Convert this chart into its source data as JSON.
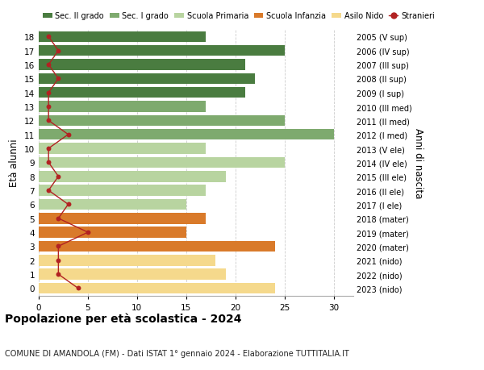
{
  "ages": [
    18,
    17,
    16,
    15,
    14,
    13,
    12,
    11,
    10,
    9,
    8,
    7,
    6,
    5,
    4,
    3,
    2,
    1,
    0
  ],
  "right_labels": [
    "2005 (V sup)",
    "2006 (IV sup)",
    "2007 (III sup)",
    "2008 (II sup)",
    "2009 (I sup)",
    "2010 (III med)",
    "2011 (II med)",
    "2012 (I med)",
    "2013 (V ele)",
    "2014 (IV ele)",
    "2015 (III ele)",
    "2016 (II ele)",
    "2017 (I ele)",
    "2018 (mater)",
    "2019 (mater)",
    "2020 (mater)",
    "2021 (nido)",
    "2022 (nido)",
    "2023 (nido)"
  ],
  "bar_values": [
    17,
    25,
    21,
    22,
    21,
    17,
    25,
    30,
    17,
    25,
    19,
    17,
    15,
    17,
    15,
    24,
    18,
    19,
    24
  ],
  "bar_colors": [
    "#4a7c40",
    "#4a7c40",
    "#4a7c40",
    "#4a7c40",
    "#4a7c40",
    "#7eaa6e",
    "#7eaa6e",
    "#7eaa6e",
    "#b8d4a0",
    "#b8d4a0",
    "#b8d4a0",
    "#b8d4a0",
    "#b8d4a0",
    "#d97a2a",
    "#d97a2a",
    "#d97a2a",
    "#f5d98c",
    "#f5d98c",
    "#f5d98c"
  ],
  "stranieri_values": [
    1,
    2,
    1,
    2,
    1,
    1,
    1,
    3,
    1,
    1,
    2,
    1,
    3,
    2,
    5,
    2,
    2,
    2,
    4
  ],
  "legend_labels": [
    "Sec. II grado",
    "Sec. I grado",
    "Scuola Primaria",
    "Scuola Infanzia",
    "Asilo Nido",
    "Stranieri"
  ],
  "legend_colors": [
    "#4a7c40",
    "#7eaa6e",
    "#b8d4a0",
    "#d97a2a",
    "#f5d98c",
    "#b22222"
  ],
  "ylabel_left": "Età alunni",
  "ylabel_right": "Anni di nascita",
  "title": "Popolazione per età scolastica - 2024",
  "subtitle": "COMUNE DI AMANDOLA (FM) - Dati ISTAT 1° gennaio 2024 - Elaborazione TUTTITALIA.IT",
  "xlim": [
    0,
    32
  ],
  "xticks": [
    0,
    5,
    10,
    15,
    20,
    25,
    30
  ],
  "grid_color": "#cccccc",
  "bar_height": 0.78,
  "bg_color": "#ffffff",
  "stranieri_color": "#b22222",
  "ylim_low": -0.55,
  "ylim_high": 18.55
}
